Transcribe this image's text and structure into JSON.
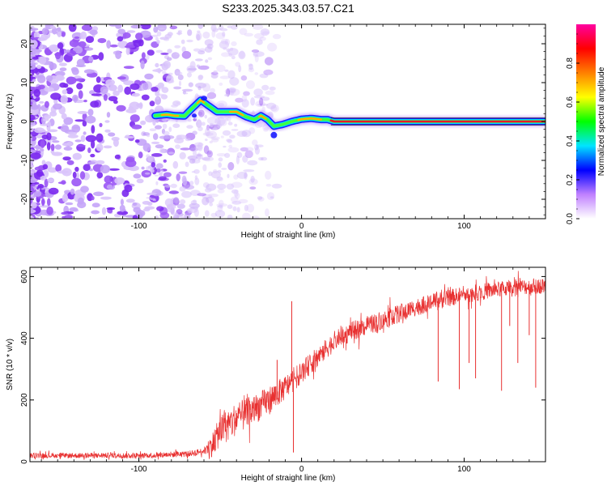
{
  "title": "S233.2025.343.03.57.C21",
  "colors": {
    "signal": "#e83030",
    "scatter": "#8a3cf0",
    "axes": "#000000"
  },
  "chart_data": [
    {
      "type": "heatmap",
      "title": "S233.2025.343.03.57.C21",
      "xlabel": "Height of straight line (km)",
      "ylabel": "Frequency (Hz)",
      "xlim": [
        -167,
        150
      ],
      "ylim": [
        -25,
        25
      ],
      "xticks": [
        -100,
        0,
        100
      ],
      "yticks": [
        -20,
        -10,
        0,
        10,
        20
      ],
      "colorbar": {
        "label": "Normalized spectral amplitude",
        "range": [
          0,
          1
        ],
        "ticks": [
          "0.0",
          "0.2",
          "0.4",
          "0.6",
          "0.8"
        ],
        "tick_values": [
          0.0,
          0.2,
          0.4,
          0.6,
          0.8
        ],
        "colormap": [
          "#ffffff",
          "#c080ff",
          "#0000ff",
          "#00e5ff",
          "#00ff00",
          "#ffff00",
          "#ff8000",
          "#ff0000",
          "#ff00a0"
        ]
      },
      "noise_region": {
        "x": [
          -167,
          -55
        ],
        "y": [
          -25,
          25
        ]
      },
      "ridge": [
        {
          "x": -90,
          "y": 1.5
        },
        {
          "x": -83,
          "y": 1.8
        },
        {
          "x": -78,
          "y": 1.5
        },
        {
          "x": -72,
          "y": 1.4
        },
        {
          "x": -67,
          "y": 3.5
        },
        {
          "x": -62,
          "y": 5.5
        },
        {
          "x": -57,
          "y": 4.0
        },
        {
          "x": -52,
          "y": 2.5
        },
        {
          "x": -46,
          "y": 2.5
        },
        {
          "x": -40,
          "y": 2.5
        },
        {
          "x": -34,
          "y": 1.2
        },
        {
          "x": -29,
          "y": 0.5
        },
        {
          "x": -25,
          "y": 1.5
        },
        {
          "x": -21,
          "y": 0.5
        },
        {
          "x": -17,
          "y": -1.2
        },
        {
          "x": -12,
          "y": -0.8
        },
        {
          "x": -6,
          "y": 0.0
        },
        {
          "x": 0,
          "y": 0.6
        },
        {
          "x": 6,
          "y": 0.8
        },
        {
          "x": 12,
          "y": 0.5
        },
        {
          "x": 16,
          "y": 0.5
        },
        {
          "x": 20,
          "y": 0.0
        },
        {
          "x": 150,
          "y": 0.0
        }
      ],
      "ridge_width_hz": [
        {
          "x": -90,
          "w": 3.0
        },
        {
          "x": -60,
          "w": 3.5
        },
        {
          "x": -17,
          "w": 3.0
        },
        {
          "x": 16,
          "w": 2.5
        },
        {
          "x": 20,
          "w": 1.5
        },
        {
          "x": 150,
          "w": 1.5
        }
      ]
    },
    {
      "type": "line",
      "xlabel": "Height of straight line (km)",
      "ylabel": "SNR (10 * v/v)",
      "xlim": [
        -167,
        150
      ],
      "ylim": [
        0,
        630
      ],
      "xticks": [
        -100,
        0,
        100
      ],
      "yticks": [
        0,
        200,
        400,
        600
      ],
      "series": [
        {
          "name": "SNR",
          "trend": [
            {
              "x": -167,
              "y": 20
            },
            {
              "x": -100,
              "y": 20
            },
            {
              "x": -70,
              "y": 25
            },
            {
              "x": -60,
              "y": 35
            },
            {
              "x": -55,
              "y": 55
            },
            {
              "x": -50,
              "y": 100
            },
            {
              "x": -40,
              "y": 140
            },
            {
              "x": -30,
              "y": 165
            },
            {
              "x": -20,
              "y": 200
            },
            {
              "x": -10,
              "y": 240
            },
            {
              "x": 0,
              "y": 290
            },
            {
              "x": 10,
              "y": 340
            },
            {
              "x": 20,
              "y": 390
            },
            {
              "x": 30,
              "y": 420
            },
            {
              "x": 50,
              "y": 460
            },
            {
              "x": 70,
              "y": 500
            },
            {
              "x": 90,
              "y": 530
            },
            {
              "x": 110,
              "y": 550
            },
            {
              "x": 130,
              "y": 565
            },
            {
              "x": 150,
              "y": 570
            }
          ],
          "noise": [
            {
              "x": -167,
              "amp": 8
            },
            {
              "x": -60,
              "amp": 10
            },
            {
              "x": -55,
              "amp": 40
            },
            {
              "x": -45,
              "amp": 55
            },
            {
              "x": -20,
              "amp": 45
            },
            {
              "x": 0,
              "amp": 35
            },
            {
              "x": 50,
              "amp": 30
            },
            {
              "x": 150,
              "amp": 25
            }
          ],
          "spikes": [
            {
              "x": -6,
              "y": 520
            },
            {
              "x": -5,
              "y": 30
            },
            {
              "x": -15,
              "y": 330
            },
            {
              "x": 84,
              "y": 260
            },
            {
              "x": 97,
              "y": 235
            },
            {
              "x": 103,
              "y": 320
            },
            {
              "x": 107,
              "y": 270
            },
            {
              "x": 123,
              "y": 230
            },
            {
              "x": 128,
              "y": 440
            },
            {
              "x": 133,
              "y": 320
            },
            {
              "x": 140,
              "y": 410
            },
            {
              "x": 144,
              "y": 240
            }
          ]
        }
      ]
    }
  ]
}
